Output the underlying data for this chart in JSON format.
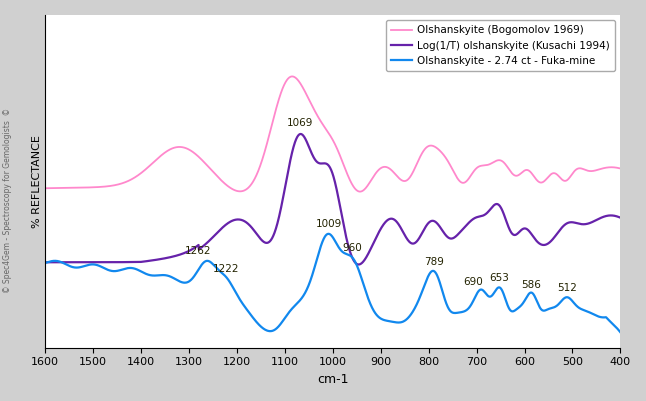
{
  "xlabel": "cm-1",
  "ylabel": "% REFLECTANCE",
  "xlim": [
    1600,
    400
  ],
  "ylim": [
    0.0,
    1.0
  ],
  "legend_entries": [
    "Olshanskyite (Bogomolov 1969)",
    "Log(1/T) olshanskyite (Kusachi 1994)",
    "Olshanskyite - 2.74 ct - Fuka-mine"
  ],
  "line_colors": [
    "#ff88cc",
    "#6622aa",
    "#1188ee"
  ],
  "watermark": "© Spec4Gem - Spectroscopy for Gemologists  ©",
  "bg_left": "#c8c8c8",
  "bg_plot": "#ffffff",
  "xticks": [
    1600,
    1500,
    1400,
    1300,
    1200,
    1100,
    1000,
    900,
    800,
    700,
    600,
    500,
    400
  ]
}
